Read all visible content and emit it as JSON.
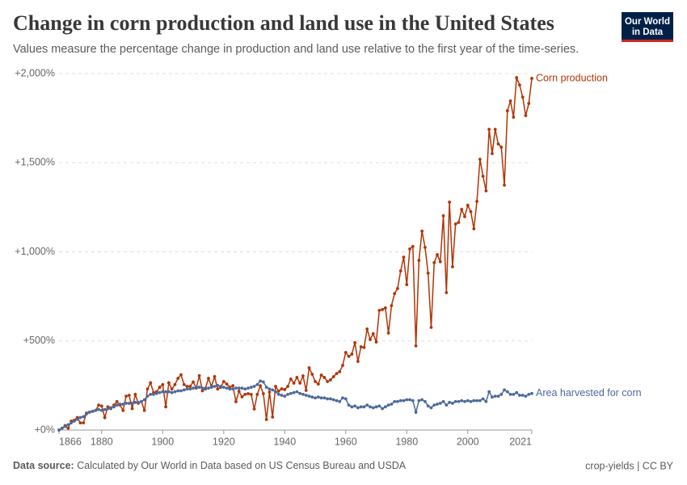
{
  "chart_data": {
    "type": "line",
    "title": "Change in corn production and land use in the United States",
    "subtitle": "Values measure the percentage change in production and land use relative to the first year of the time-series.",
    "x": [
      1866,
      1867,
      1868,
      1869,
      1870,
      1871,
      1872,
      1873,
      1874,
      1875,
      1876,
      1877,
      1878,
      1879,
      1880,
      1881,
      1882,
      1883,
      1884,
      1885,
      1886,
      1887,
      1888,
      1889,
      1890,
      1891,
      1892,
      1893,
      1894,
      1895,
      1896,
      1897,
      1898,
      1899,
      1900,
      1901,
      1902,
      1903,
      1904,
      1905,
      1906,
      1907,
      1908,
      1909,
      1910,
      1911,
      1912,
      1913,
      1914,
      1915,
      1916,
      1917,
      1918,
      1919,
      1920,
      1921,
      1922,
      1923,
      1924,
      1925,
      1926,
      1927,
      1928,
      1929,
      1930,
      1931,
      1932,
      1933,
      1934,
      1935,
      1936,
      1937,
      1938,
      1939,
      1940,
      1941,
      1942,
      1943,
      1944,
      1945,
      1946,
      1947,
      1948,
      1949,
      1950,
      1951,
      1952,
      1953,
      1954,
      1955,
      1956,
      1957,
      1958,
      1959,
      1960,
      1961,
      1962,
      1963,
      1964,
      1965,
      1966,
      1967,
      1968,
      1969,
      1970,
      1971,
      1972,
      1973,
      1974,
      1975,
      1976,
      1977,
      1978,
      1979,
      1980,
      1981,
      1982,
      1983,
      1984,
      1985,
      1986,
      1987,
      1988,
      1989,
      1990,
      1991,
      1992,
      1993,
      1994,
      1995,
      1996,
      1997,
      1998,
      1999,
      2000,
      2001,
      2002,
      2003,
      2004,
      2005,
      2006,
      2007,
      2008,
      2009,
      2010,
      2011,
      2012,
      2013,
      2014,
      2015,
      2016,
      2017,
      2018,
      2019,
      2020,
      2021
    ],
    "series": [
      {
        "name": "Corn production",
        "color": "#b13507",
        "values": [
          0,
          10,
          25,
          10,
          50,
          55,
          70,
          40,
          40,
          95,
          100,
          105,
          110,
          140,
          135,
          70,
          130,
          120,
          140,
          160,
          140,
          110,
          190,
          195,
          120,
          200,
          150,
          160,
          110,
          230,
          265,
          210,
          215,
          240,
          255,
          130,
          265,
          230,
          255,
          290,
          310,
          255,
          245,
          245,
          270,
          235,
          305,
          220,
          235,
          290,
          245,
          300,
          230,
          240,
          272,
          258,
          240,
          249,
          159,
          218,
          186,
          200,
          204,
          200,
          118,
          200,
          249,
          204,
          59,
          213,
          73,
          245,
          218,
          231,
          227,
          245,
          286,
          263,
          295,
          263,
          304,
          222,
          349,
          313,
          272,
          258,
          308,
          295,
          272,
          281,
          299,
          317,
          327,
          363,
          435,
          413,
          426,
          490,
          385,
          467,
          463,
          567,
          508,
          540,
          494,
          671,
          676,
          685,
          544,
          698,
          766,
          794,
          893,
          970,
          816,
          1016,
          1030,
          472,
          952,
          1116,
          1025,
          880,
          576,
          939,
          984,
          944,
          1202,
          771,
          1279,
          916,
          1156,
          1165,
          1238,
          1197,
          1261,
          1225,
          1129,
          1283,
          1519,
          1424,
          1342,
          1687,
          1551,
          1687,
          1605,
          1587,
          1374,
          1791,
          1846,
          1755,
          1977,
          1936,
          1868,
          1764,
          1832,
          1973
        ]
      },
      {
        "name": "Area harvested for corn",
        "color": "#4c6a9c",
        "values": [
          0,
          10,
          20,
          30,
          40,
          50,
          60,
          70,
          75,
          90,
          100,
          105,
          110,
          115,
          110,
          115,
          120,
          125,
          130,
          140,
          145,
          145,
          150,
          150,
          150,
          155,
          155,
          160,
          170,
          190,
          200,
          200,
          205,
          210,
          215,
          215,
          215,
          210,
          215,
          220,
          220,
          225,
          230,
          230,
          235,
          240,
          240,
          235,
          230,
          235,
          240,
          245,
          250,
          245,
          240,
          235,
          230,
          230,
          235,
          235,
          235,
          230,
          235,
          240,
          245,
          255,
          275,
          270,
          240,
          230,
          225,
          215,
          200,
          195,
          190,
          200,
          205,
          210,
          215,
          205,
          200,
          195,
          190,
          185,
          180,
          185,
          180,
          180,
          175,
          175,
          170,
          165,
          160,
          180,
          175,
          140,
          130,
          135,
          125,
          130,
          130,
          140,
          130,
          125,
          130,
          135,
          120,
          130,
          140,
          145,
          160,
          160,
          165,
          165,
          170,
          170,
          165,
          100,
          165,
          170,
          160,
          135,
          125,
          140,
          145,
          150,
          160,
          140,
          155,
          150,
          160,
          160,
          165,
          160,
          165,
          160,
          165,
          165,
          165,
          175,
          160,
          215,
          185,
          190,
          190,
          200,
          225,
          215,
          200,
          200,
          210,
          195,
          195,
          190,
          200,
          205
        ]
      }
    ],
    "xlim": [
      1866,
      2021
    ],
    "xticks": [
      1866,
      1880,
      1900,
      1920,
      1940,
      1960,
      1980,
      2000,
      2021
    ],
    "ylim": [
      0,
      2000
    ],
    "yticks": [
      {
        "value": 0,
        "label": "+0%"
      },
      {
        "value": 500,
        "label": "+500%"
      },
      {
        "value": 1000,
        "label": "+1,000%"
      },
      {
        "value": 1500,
        "label": "+1,500%"
      },
      {
        "value": 2000,
        "label": "+2,000%"
      }
    ],
    "grid": true
  },
  "logo": [
    "Our World",
    "in Data"
  ],
  "footer": {
    "source_label": "Data source:",
    "source": "Calculated by Our World in Data based on US Census Bureau and USDA",
    "license": "crop-yields | CC BY"
  }
}
